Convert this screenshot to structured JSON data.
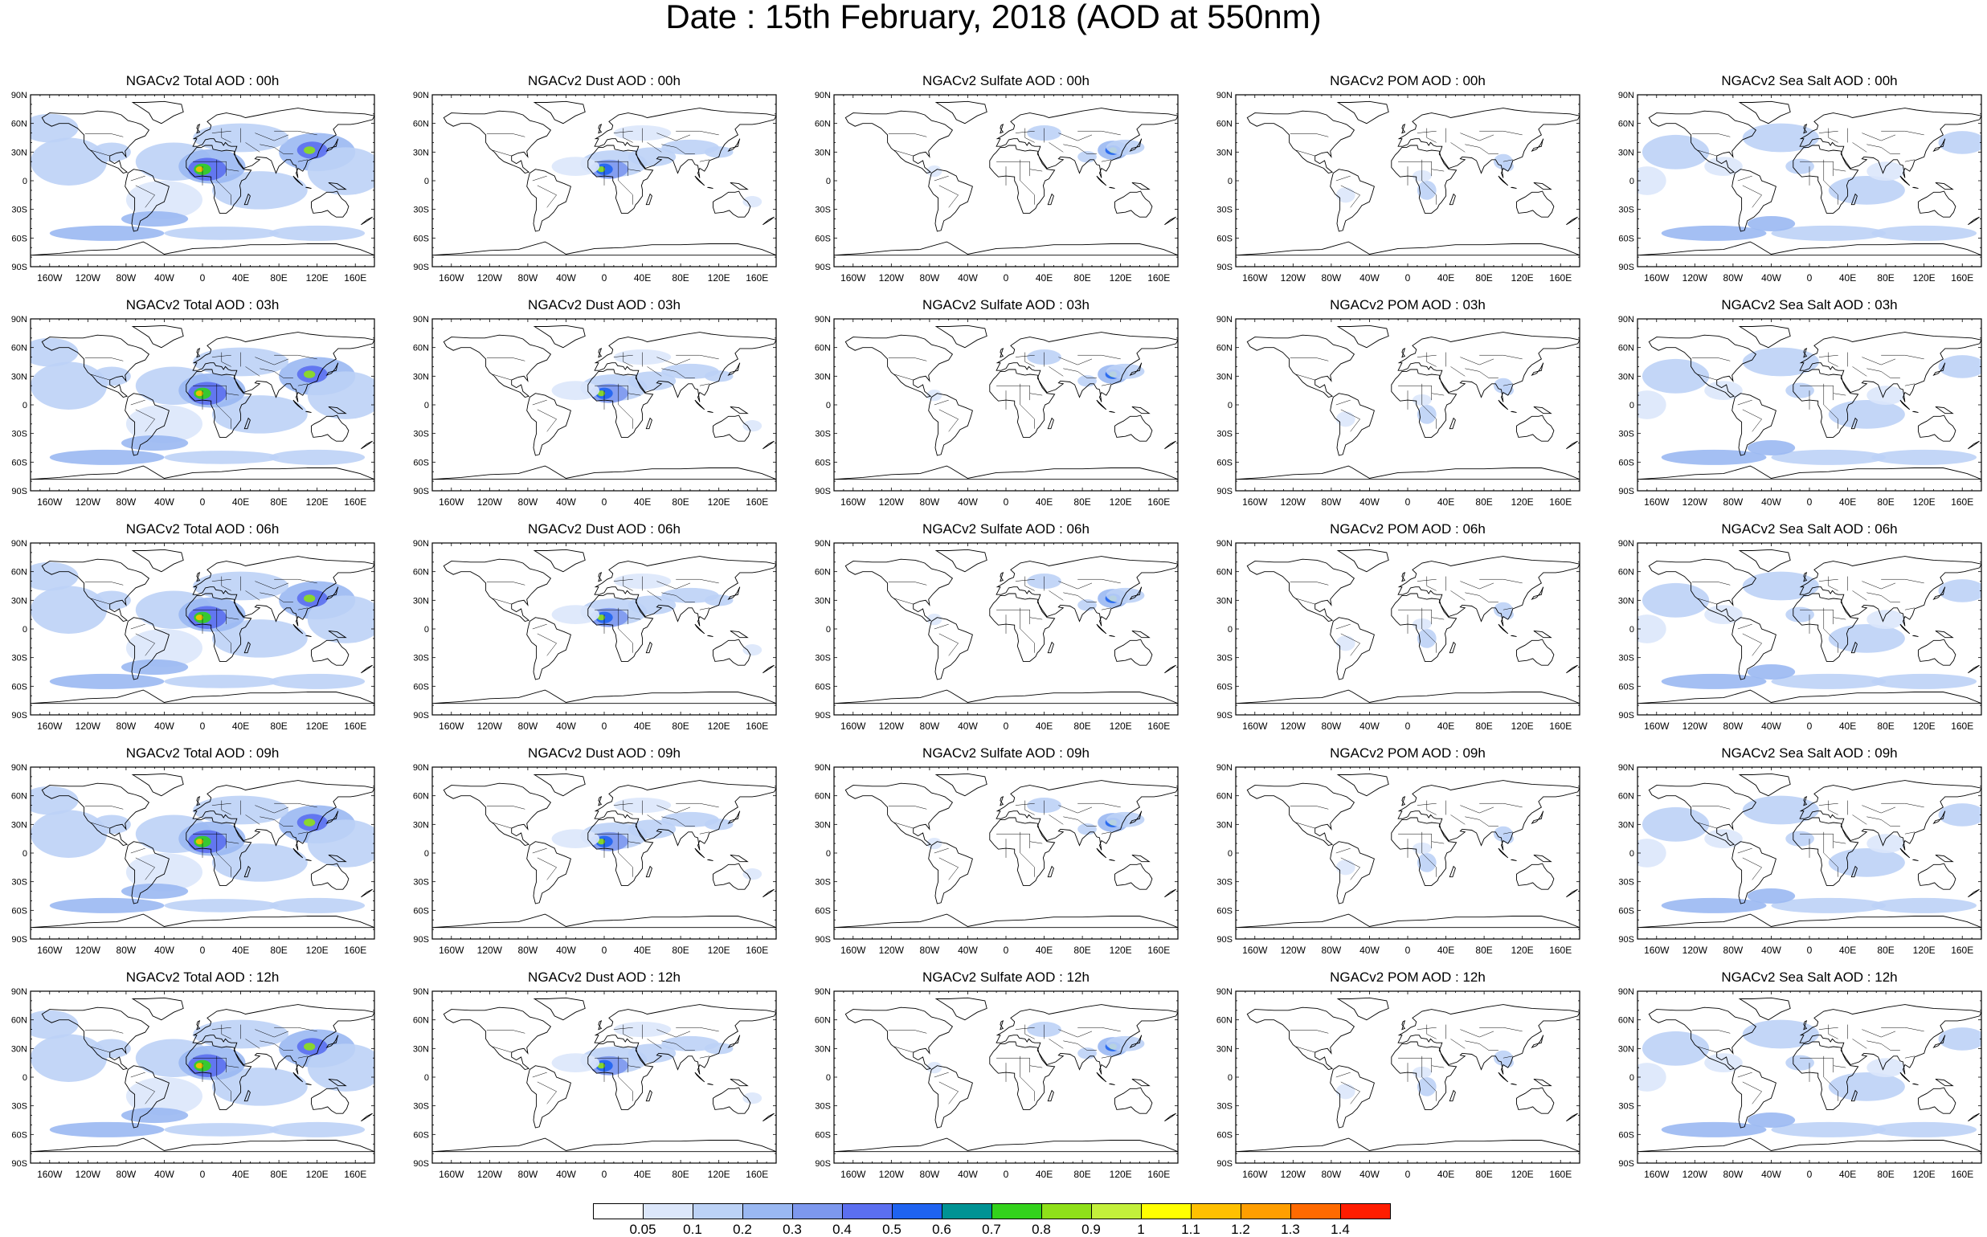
{
  "title": "Date : 15th February, 2018 (AOD at 550nm)",
  "axes": {
    "lat_labels": [
      "90N",
      "60N",
      "30N",
      "0",
      "30S",
      "60S",
      "90S"
    ],
    "lon_labels": [
      "160W",
      "120W",
      "80W",
      "40W",
      "0",
      "40E",
      "80E",
      "120E",
      "160E"
    ]
  },
  "panels": [
    [
      "NGACv2 Total AOD : 00h",
      "NGACv2 Dust AOD : 00h",
      "NGACv2 Sulfate AOD : 00h",
      "NGACv2 POM AOD : 00h",
      "NGACv2 Sea Salt AOD : 00h"
    ],
    [
      "NGACv2 Total AOD : 03h",
      "NGACv2 Dust AOD : 03h",
      "NGACv2 Sulfate AOD : 03h",
      "NGACv2 POM AOD : 03h",
      "NGACv2 Sea Salt AOD : 03h"
    ],
    [
      "NGACv2 Total AOD : 06h",
      "NGACv2 Dust AOD : 06h",
      "NGACv2 Sulfate AOD : 06h",
      "NGACv2 POM AOD : 06h",
      "NGACv2 Sea Salt AOD : 06h"
    ],
    [
      "NGACv2 Total AOD : 09h",
      "NGACv2 Dust AOD : 09h",
      "NGACv2 Sulfate AOD : 09h",
      "NGACv2 POM AOD : 09h",
      "NGACv2 Sea Salt  AOD : 09h"
    ],
    [
      "NGACv2 Total AOD :  12h",
      "NGACv2 Dust AOD : 12h",
      "NGACv2 Sulfate AOD : 12h",
      "NGACv2 POM  AOD : 12h",
      "NGACv2 Sea Salt AOD : 12h"
    ]
  ],
  "colorbar": {
    "labels": [
      "0.05",
      "0.1",
      "0.2",
      "0.3",
      "0.4",
      "0.5",
      "0.6",
      "0.7",
      "0.8",
      "0.9",
      "1",
      "1.1",
      "1.2",
      "1.3",
      "1.4"
    ],
    "colors": [
      "#ffffff",
      "#dce7fb",
      "#bcd2f6",
      "#9ab8f2",
      "#7d98ee",
      "#5b6ff0",
      "#1f63f0",
      "#009394",
      "#33d21c",
      "#8fe019",
      "#c3f03b",
      "#ffff00",
      "#ffc000",
      "#ff9e00",
      "#ff6a00",
      "#ff1d00"
    ]
  }
}
